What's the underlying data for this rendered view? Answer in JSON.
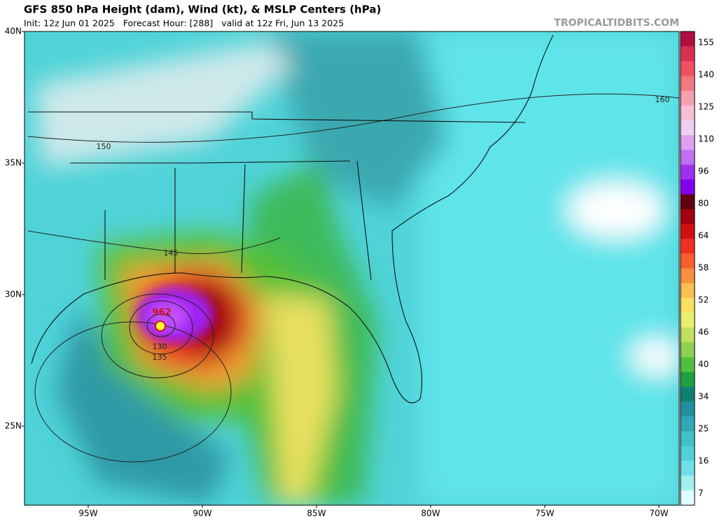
{
  "header": {
    "title": "GFS 850 hPa Height (dam), Wind (kt), & MSLP Centers (hPa)",
    "subtitle": "Init: 12z Jun 01 2025   Forecast Hour: [288]   valid at 12z Fri, Jun 13 2025",
    "credit": "TROPICALTIDBITS.COM"
  },
  "map": {
    "lat_labels": [
      "40N",
      "35N",
      "30N",
      "25N"
    ],
    "lon_labels": [
      "95W",
      "90W",
      "85W",
      "80W",
      "75W",
      "70W"
    ],
    "contour_labels": [
      "150",
      "160",
      "145",
      "130",
      "135"
    ],
    "low_center": "962"
  },
  "colorbar": {
    "labels": [
      "155",
      "140",
      "125",
      "110",
      "96",
      "80",
      "64",
      "58",
      "52",
      "46",
      "40",
      "34",
      "25",
      "16",
      "7"
    ]
  }
}
